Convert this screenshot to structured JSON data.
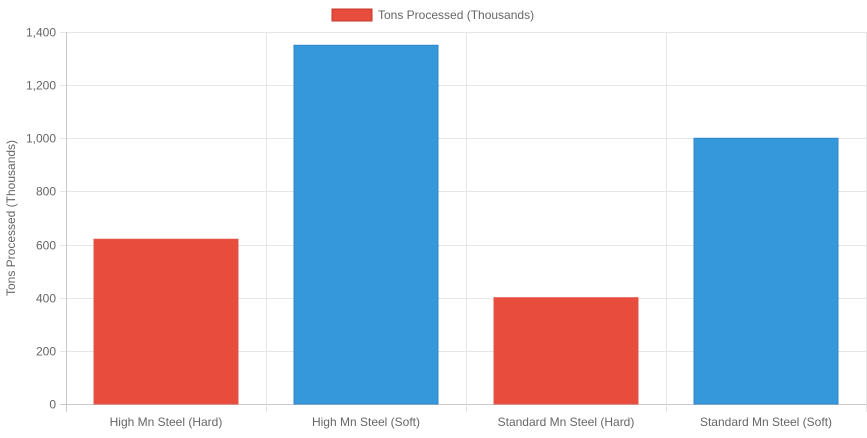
{
  "chart_data": {
    "type": "bar",
    "categories": [
      "High Mn Steel (Hard)",
      "High Mn Steel (Soft)",
      "Standard Mn Steel (Hard)",
      "Standard Mn Steel (Soft)"
    ],
    "series": [
      {
        "name": "Tons Processed (Thousands)",
        "values": [
          620,
          1350,
          400,
          1000
        ]
      }
    ],
    "bar_colors": [
      "#e74c3c",
      "#3498db",
      "#e74c3c",
      "#3498db"
    ],
    "legend_color": "#e74c3c",
    "ylabel": "Tons Processed (Thousands)",
    "xlabel": "",
    "ylim": [
      0,
      1400
    ],
    "yticks": [
      0,
      200,
      400,
      600,
      800,
      1000,
      1200,
      1400
    ],
    "ytick_labels": [
      "0",
      "200",
      "400",
      "600",
      "800",
      "1,000",
      "1,200",
      "1,400"
    ],
    "grid": true,
    "legend_position": "top"
  }
}
